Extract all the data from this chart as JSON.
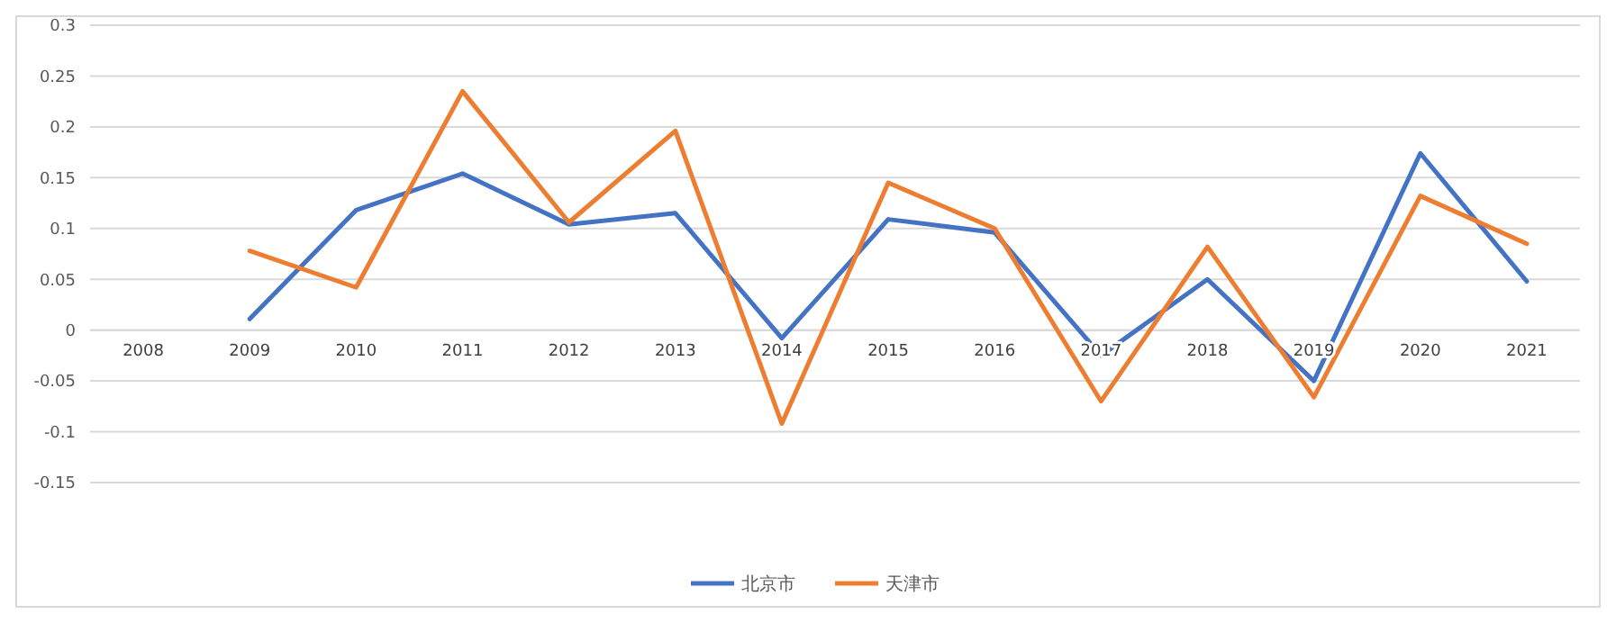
{
  "chart_data": {
    "type": "line",
    "categories": [
      "2008",
      "2009",
      "2010",
      "2011",
      "2012",
      "2013",
      "2014",
      "2015",
      "2016",
      "2017",
      "2018",
      "2019",
      "2020",
      "2021"
    ],
    "series": [
      {
        "name": "北京市",
        "color": "#4472c4",
        "values": [
          null,
          0.011,
          0.118,
          0.154,
          0.104,
          0.115,
          -0.008,
          0.109,
          0.096,
          -0.025,
          0.05,
          -0.05,
          0.174,
          0.048
        ]
      },
      {
        "name": "天津市",
        "color": "#ed7d31",
        "values": [
          null,
          0.078,
          0.042,
          0.235,
          0.106,
          0.196,
          -0.092,
          0.145,
          0.1,
          -0.07,
          0.082,
          -0.066,
          0.132,
          0.085
        ]
      }
    ],
    "ylim": [
      -0.15,
      0.3
    ],
    "yticks": [
      -0.15,
      -0.1,
      -0.05,
      0,
      0.05,
      0.1,
      0.15,
      0.2,
      0.25,
      0.3
    ],
    "grid": "y",
    "legend": "bottom",
    "marker": "none",
    "line_style": "solid"
  }
}
